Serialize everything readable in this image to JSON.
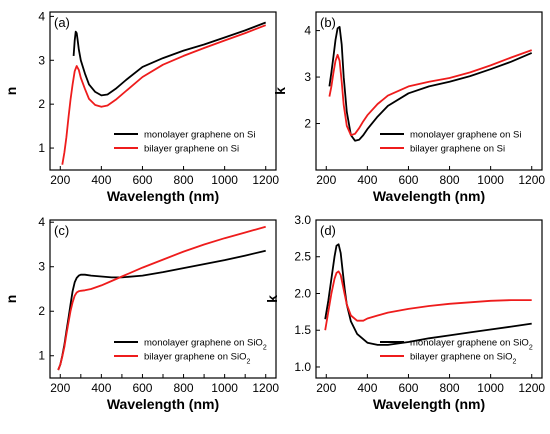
{
  "chart_data": [
    {
      "type": "line",
      "panel_label": "(a)",
      "xlabel": "Wavelength (nm)",
      "ylabel": "n",
      "xlim": [
        150,
        1250
      ],
      "ylim": [
        0.5,
        4.1
      ],
      "xticks": [
        200,
        400,
        600,
        800,
        1000,
        1200
      ],
      "yticks": [
        1,
        2,
        3,
        4
      ],
      "ytick_labels": [
        "1",
        "2",
        "3",
        "4"
      ],
      "legend_position": "bottom-right",
      "series": [
        {
          "name": "monolayer graphene on Si",
          "color": "#000000",
          "x": [
            265,
            270,
            275,
            280,
            285,
            290,
            300,
            320,
            340,
            370,
            400,
            430,
            470,
            520,
            600,
            700,
            800,
            900,
            1000,
            1100,
            1200
          ],
          "y": [
            3.1,
            3.45,
            3.65,
            3.62,
            3.45,
            3.25,
            3.0,
            2.7,
            2.45,
            2.28,
            2.2,
            2.22,
            2.35,
            2.55,
            2.85,
            3.05,
            3.22,
            3.36,
            3.52,
            3.68,
            3.86
          ]
        },
        {
          "name": "bilayer graphene on Si",
          "color": "#ee1c1c",
          "x": [
            210,
            220,
            230,
            240,
            250,
            260,
            270,
            280,
            290,
            300,
            320,
            340,
            370,
            400,
            430,
            470,
            520,
            600,
            700,
            800,
            900,
            1000,
            1100,
            1200
          ],
          "y": [
            0.62,
            0.9,
            1.25,
            1.7,
            2.1,
            2.45,
            2.75,
            2.87,
            2.78,
            2.6,
            2.35,
            2.12,
            1.98,
            1.94,
            1.97,
            2.1,
            2.3,
            2.62,
            2.9,
            3.1,
            3.28,
            3.45,
            3.62,
            3.8
          ]
        }
      ]
    },
    {
      "type": "line",
      "panel_label": "(b)",
      "xlabel": "Wavelength (nm)",
      "ylabel": "k",
      "xlim": [
        150,
        1250
      ],
      "ylim": [
        1.0,
        4.4
      ],
      "xticks": [
        200,
        400,
        600,
        800,
        1000,
        1200
      ],
      "yticks": [
        2,
        3,
        4
      ],
      "ytick_labels": [
        "2",
        "3",
        "4"
      ],
      "legend_position": "bottom-right",
      "series": [
        {
          "name": "monolayer graphene on Si",
          "color": "#000000",
          "x": [
            215,
            225,
            235,
            245,
            255,
            265,
            275,
            285,
            300,
            320,
            340,
            360,
            380,
            400,
            450,
            500,
            600,
            700,
            800,
            900,
            1000,
            1100,
            1200
          ],
          "y": [
            2.8,
            3.1,
            3.45,
            3.8,
            4.05,
            4.08,
            3.7,
            3.0,
            2.25,
            1.75,
            1.63,
            1.65,
            1.75,
            1.88,
            2.15,
            2.38,
            2.65,
            2.8,
            2.9,
            3.02,
            3.17,
            3.33,
            3.52
          ]
        },
        {
          "name": "bilayer graphene on Si",
          "color": "#ee1c1c",
          "x": [
            215,
            225,
            235,
            245,
            255,
            265,
            275,
            285,
            300,
            320,
            340,
            360,
            380,
            400,
            450,
            500,
            600,
            700,
            800,
            900,
            1000,
            1100,
            1200
          ],
          "y": [
            2.58,
            2.8,
            3.1,
            3.35,
            3.48,
            3.35,
            2.9,
            2.4,
            1.95,
            1.75,
            1.78,
            1.9,
            2.05,
            2.18,
            2.42,
            2.6,
            2.8,
            2.9,
            2.98,
            3.1,
            3.25,
            3.42,
            3.58
          ]
        }
      ]
    },
    {
      "type": "line",
      "panel_label": "(c)",
      "xlabel": "Wavelength (nm)",
      "ylabel": "n",
      "xlim": [
        150,
        1250
      ],
      "ylim": [
        0.5,
        4.05
      ],
      "xticks": [
        200,
        300,
        400,
        500,
        600,
        700,
        800,
        900,
        1000,
        1100,
        1200
      ],
      "xtick_labels": [
        "200",
        "",
        "400",
        "",
        "600",
        "",
        "800",
        "",
        "1000",
        "",
        "1200"
      ],
      "yticks": [
        1,
        2,
        3,
        4
      ],
      "ytick_labels": [
        "1",
        "2",
        "3",
        "4"
      ],
      "legend_position": "bottom-right",
      "series": [
        {
          "name": "monolayer graphene on SiO",
          "name_subscript": "2",
          "color": "#000000",
          "x": [
            190,
            200,
            210,
            220,
            230,
            240,
            250,
            260,
            270,
            280,
            290,
            300,
            320,
            350,
            400,
            450,
            500,
            600,
            700,
            800,
            900,
            1000,
            1100,
            1200
          ],
          "y": [
            0.68,
            0.8,
            1.0,
            1.25,
            1.55,
            1.85,
            2.15,
            2.45,
            2.65,
            2.75,
            2.8,
            2.82,
            2.82,
            2.8,
            2.78,
            2.76,
            2.76,
            2.8,
            2.88,
            2.97,
            3.06,
            3.15,
            3.25,
            3.36
          ]
        },
        {
          "name": "bilayer graphene on SiO",
          "name_subscript": "2",
          "color": "#ee1c1c",
          "x": [
            190,
            200,
            210,
            220,
            230,
            240,
            250,
            260,
            270,
            280,
            290,
            300,
            320,
            350,
            400,
            450,
            500,
            600,
            700,
            800,
            900,
            1000,
            1100,
            1200
          ],
          "y": [
            0.68,
            0.8,
            0.98,
            1.2,
            1.48,
            1.75,
            2.0,
            2.2,
            2.35,
            2.42,
            2.45,
            2.46,
            2.47,
            2.5,
            2.58,
            2.68,
            2.78,
            2.98,
            3.16,
            3.34,
            3.5,
            3.64,
            3.77,
            3.9
          ]
        }
      ]
    },
    {
      "type": "line",
      "panel_label": "(d)",
      "xlabel": "Wavelength (nm)",
      "ylabel": "k",
      "xlim": [
        150,
        1250
      ],
      "ylim": [
        0.85,
        3.0
      ],
      "xticks": [
        200,
        400,
        600,
        800,
        1000,
        1200
      ],
      "yticks": [
        1.0,
        1.5,
        2.0,
        2.5,
        3.0
      ],
      "ytick_labels": [
        "1.0",
        "1.5",
        "2.0",
        "2.5",
        "3.0"
      ],
      "legend_position": "bottom-right",
      "series": [
        {
          "name": "monolayer graphene on SiO",
          "name_subscript": "2",
          "color": "#000000",
          "x": [
            195,
            210,
            225,
            240,
            250,
            260,
            270,
            280,
            290,
            300,
            320,
            350,
            400,
            450,
            500,
            600,
            700,
            800,
            900,
            1000,
            1100,
            1200
          ],
          "y": [
            1.65,
            1.9,
            2.2,
            2.5,
            2.65,
            2.67,
            2.55,
            2.3,
            2.05,
            1.85,
            1.62,
            1.45,
            1.33,
            1.3,
            1.3,
            1.34,
            1.39,
            1.43,
            1.47,
            1.51,
            1.55,
            1.59
          ]
        },
        {
          "name": "bilayer graphene on SiO",
          "name_subscript": "2",
          "color": "#ee1c1c",
          "x": [
            195,
            210,
            225,
            240,
            250,
            260,
            270,
            280,
            290,
            300,
            320,
            350,
            380,
            400,
            450,
            500,
            600,
            700,
            800,
            900,
            1000,
            1100,
            1200
          ],
          "y": [
            1.5,
            1.75,
            2.0,
            2.2,
            2.28,
            2.3,
            2.25,
            2.12,
            1.98,
            1.85,
            1.7,
            1.63,
            1.63,
            1.66,
            1.7,
            1.74,
            1.79,
            1.83,
            1.86,
            1.88,
            1.9,
            1.91,
            1.91
          ]
        }
      ]
    }
  ]
}
